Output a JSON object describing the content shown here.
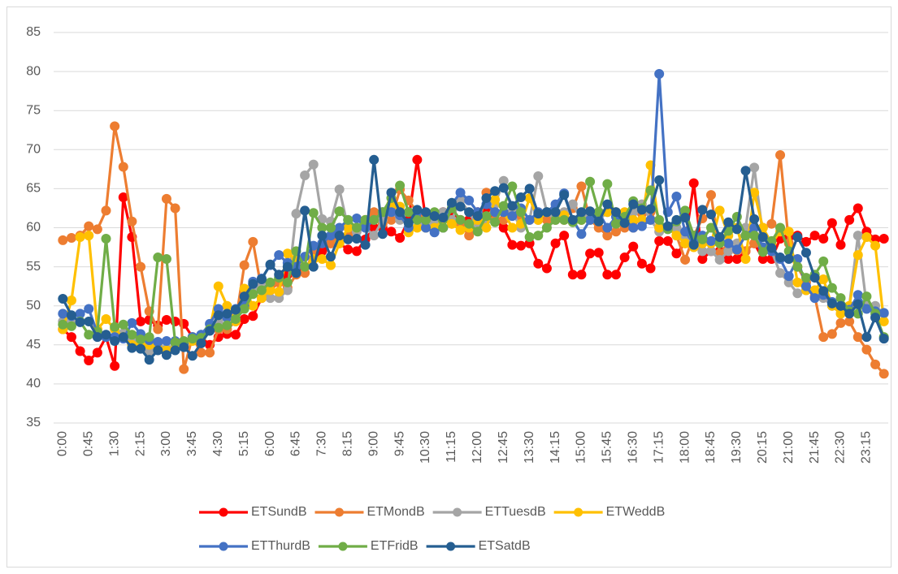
{
  "chart_data": {
    "type": "line",
    "categories": [
      "0:00",
      null,
      null,
      "0:45",
      null,
      null,
      "1:30",
      null,
      null,
      "2:15",
      null,
      null,
      "3:00",
      null,
      null,
      "3:45",
      null,
      null,
      "4:30",
      null,
      null,
      "5:15",
      null,
      null,
      "6:00",
      null,
      null,
      "6:45",
      null,
      null,
      "7:30",
      null,
      null,
      "8:15",
      null,
      null,
      "9:00",
      null,
      null,
      "9:45",
      null,
      null,
      "10:30",
      null,
      null,
      "11:15",
      null,
      null,
      "12:00",
      null,
      null,
      "12:45",
      null,
      null,
      "13:30",
      null,
      null,
      "14:15",
      null,
      null,
      "15:00",
      null,
      null,
      "15:45",
      null,
      null,
      "16:30",
      null,
      null,
      "17:15",
      null,
      null,
      "18:00",
      null,
      null,
      "18:45",
      null,
      null,
      "19:30",
      null,
      null,
      "20:15",
      null,
      null,
      "21:00",
      null,
      null,
      "21:45",
      null,
      null,
      "22:30",
      null,
      null,
      "23:15",
      null,
      null
    ],
    "series": [
      {
        "name": "ETSundB",
        "color": "#ff0000",
        "values": [
          47,
          46,
          44.2,
          43,
          44,
          46,
          42.3,
          63.9,
          58.8,
          48,
          48.2,
          47.5,
          48.2,
          48,
          47.7,
          46,
          46,
          45,
          46,
          46.4,
          46.3,
          48.3,
          48.7,
          51,
          52,
          53,
          54,
          54.5,
          55,
          56,
          57,
          58,
          58,
          57.2,
          57,
          58.5,
          60,
          60,
          59.5,
          58.7,
          61,
          68.7,
          61,
          61,
          62,
          62,
          61,
          61,
          62,
          62,
          61,
          60,
          57.8,
          57.7,
          58,
          55.4,
          54.8,
          58,
          59,
          54,
          54,
          56.7,
          56.8,
          54,
          54,
          56.2,
          57.6,
          55.4,
          54.8,
          58.3,
          58.3,
          56.7,
          58,
          65.7,
          56,
          57,
          57,
          56,
          56,
          57,
          58,
          56,
          56,
          58.6,
          58.8,
          59,
          58.2,
          59,
          58.6,
          60.6,
          57.8,
          61,
          62.5,
          59.5,
          58.5,
          58.6
        ]
      },
      {
        "name": "ETMondB",
        "color": "#ed7d31",
        "values": [
          58.4,
          58.7,
          59,
          60.2,
          59.8,
          62.2,
          73,
          67.8,
          60.8,
          55,
          49.3,
          47,
          63.7,
          62.5,
          41.9,
          46,
          44,
          44,
          47,
          47,
          48,
          55.2,
          58.2,
          52,
          52,
          53,
          52.3,
          54,
          54.2,
          57,
          58,
          58,
          59,
          59,
          60,
          61,
          62,
          60.5,
          61,
          64.9,
          63.5,
          62,
          61,
          60.5,
          60,
          60.5,
          60.5,
          59,
          60,
          64.5,
          61,
          61,
          62,
          61,
          61,
          61,
          61,
          61,
          61,
          62.5,
          65.3,
          61,
          60,
          59,
          59.5,
          60,
          60,
          61.8,
          62,
          60,
          60,
          59,
          55.9,
          59,
          61.2,
          64.2,
          56.7,
          58,
          57.1,
          57,
          58,
          60,
          60.5,
          69.3,
          58,
          55,
          53,
          51.2,
          46,
          46.4,
          47.8,
          48,
          46,
          44.4,
          42.5,
          41.3
        ]
      },
      {
        "name": "ETTuesdB",
        "color": "#a5a5a5",
        "values": [
          48,
          48,
          48,
          48,
          47,
          46.3,
          46,
          46.5,
          46,
          45,
          44,
          45,
          44.5,
          45,
          45,
          46,
          46.3,
          47,
          48,
          48.5,
          49,
          50.5,
          52,
          53,
          51,
          51,
          52,
          61.8,
          66.7,
          68.1,
          61.1,
          60.8,
          64.9,
          60,
          59.5,
          60,
          59,
          61,
          62,
          61,
          62,
          61,
          60,
          61,
          62,
          61,
          63.5,
          62,
          60,
          61,
          63,
          66,
          62,
          60,
          61,
          66.6,
          62,
          61,
          62,
          63,
          61,
          62,
          61,
          62,
          62,
          61,
          62,
          63,
          61,
          59.5,
          60,
          60,
          58.5,
          58,
          57,
          57,
          55.9,
          57,
          58,
          60,
          67.7,
          59,
          57,
          54.2,
          53,
          51.6,
          52,
          52,
          51,
          50,
          49,
          50,
          59,
          50,
          50,
          49
        ]
      },
      {
        "name": "ETWeddB",
        "color": "#ffc000",
        "values": [
          47,
          50.7,
          58.8,
          59,
          47,
          48.3,
          47,
          46,
          45,
          45,
          45,
          44.5,
          44.3,
          44.5,
          45,
          45.5,
          46,
          47,
          52.5,
          50,
          48,
          52.2,
          50,
          51,
          52,
          51.8,
          56.7,
          56,
          55,
          56,
          56,
          55.2,
          58,
          60,
          60,
          61,
          61,
          62,
          63,
          62.7,
          59.4,
          60,
          60,
          60,
          61,
          60.5,
          59.7,
          60,
          61,
          60,
          63.6,
          62,
          60,
          60.5,
          63.8,
          61,
          62,
          62,
          61.6,
          61,
          61,
          61,
          62,
          62,
          62,
          62,
          61,
          61,
          68,
          60,
          60,
          59,
          58,
          57.5,
          58,
          58,
          62.2,
          59,
          60,
          56,
          64.5,
          60,
          58,
          59.5,
          59.5,
          53,
          52,
          52,
          53.4,
          50,
          49,
          50,
          56.5,
          58.8,
          57.7,
          48
        ]
      },
      {
        "name": "ETThurdB",
        "color": "#4472c4",
        "values": [
          49,
          48.7,
          49,
          49.6,
          46.5,
          46,
          46,
          45.8,
          47.8,
          46.4,
          45.6,
          45.4,
          45.5,
          45.5,
          45.2,
          46,
          46.3,
          47.7,
          49.6,
          48.5,
          49.6,
          50,
          53.1,
          53.5,
          55.2,
          56.5,
          55.5,
          55,
          56.3,
          57.7,
          58,
          59,
          60,
          61,
          61.2,
          60,
          61,
          62,
          62,
          61.6,
          60,
          62,
          60,
          59.4,
          60,
          63,
          64.5,
          63.5,
          62,
          63,
          62,
          62,
          61.5,
          62.5,
          61,
          62,
          62,
          63,
          64.4,
          61,
          59.2,
          61,
          62,
          60,
          61.4,
          61,
          60,
          60.2,
          61,
          79.7,
          62,
          64,
          59.5,
          58,
          59,
          58.3,
          58.5,
          58,
          57.2,
          59,
          60,
          57.5,
          57,
          56,
          53.8,
          56,
          52.5,
          51,
          51.4,
          50.5,
          50,
          49.5,
          51.4,
          49.6,
          49.3,
          49.1
        ]
      },
      {
        "name": "ETFridB",
        "color": "#70ad47",
        "values": [
          47.6,
          47.4,
          48,
          46.3,
          46.7,
          58.6,
          47.3,
          47.6,
          46.3,
          45.7,
          46,
          56.2,
          56,
          45.3,
          45.5,
          45.8,
          45.9,
          47,
          47.2,
          47.5,
          48.3,
          49.6,
          51.5,
          52,
          53,
          53.6,
          53,
          57,
          55,
          61.9,
          60,
          60,
          62.1,
          61,
          60,
          61,
          61,
          62,
          63.8,
          65.4,
          62,
          61,
          61,
          62,
          60,
          62.5,
          61,
          60.5,
          59.5,
          61.5,
          60.7,
          62.8,
          65.3,
          62,
          58.8,
          59,
          60,
          61,
          61,
          60.7,
          61,
          65.9,
          62,
          65.6,
          60.5,
          61.4,
          63.4,
          62.5,
          64.8,
          61,
          59.8,
          60.8,
          62.2,
          59,
          58.5,
          60,
          58,
          59.6,
          61.4,
          59,
          59,
          56.9,
          58.3,
          60,
          57,
          55,
          53.6,
          54,
          55.7,
          52.3,
          51,
          49.3,
          49,
          51.2,
          49,
          46
        ]
      },
      {
        "name": "ETSatdB",
        "color": "#255e91",
        "values": [
          50.9,
          48.8,
          47.9,
          48,
          46,
          46.3,
          45.5,
          46,
          44.6,
          44.5,
          43.1,
          44.3,
          43.7,
          44.3,
          44.7,
          43.6,
          45.2,
          46.8,
          48.8,
          49,
          49.5,
          51.2,
          52.8,
          53.4,
          55.3,
          54,
          55,
          54.2,
          62.2,
          55,
          59,
          56.3,
          59,
          58.5,
          58.6,
          57.8,
          68.7,
          59.2,
          64.5,
          62,
          60.6,
          62.3,
          62,
          61.5,
          61.3,
          63.2,
          62.7,
          62,
          61.5,
          63.8,
          64.7,
          65.1,
          62.8,
          63.9,
          65,
          61.8,
          62,
          62,
          64.2,
          61,
          62,
          62.1,
          60.8,
          63,
          62,
          60.6,
          63,
          62.3,
          62.4,
          66.1,
          60.2,
          61,
          61.3,
          57.8,
          62.3,
          61.7,
          58.8,
          60.7,
          59.8,
          67.3,
          61.1,
          58.8,
          57.4,
          56.2,
          56,
          58.8,
          56.8,
          53.6,
          51.9,
          50.3,
          50,
          49,
          50.2,
          46,
          48.5,
          45.8
        ]
      }
    ],
    "ylim": [
      35,
      85
    ],
    "yticks": [
      35,
      40,
      45,
      50,
      55,
      60,
      65,
      70,
      75,
      80,
      85
    ],
    "grid": true,
    "legend": "bottom"
  }
}
